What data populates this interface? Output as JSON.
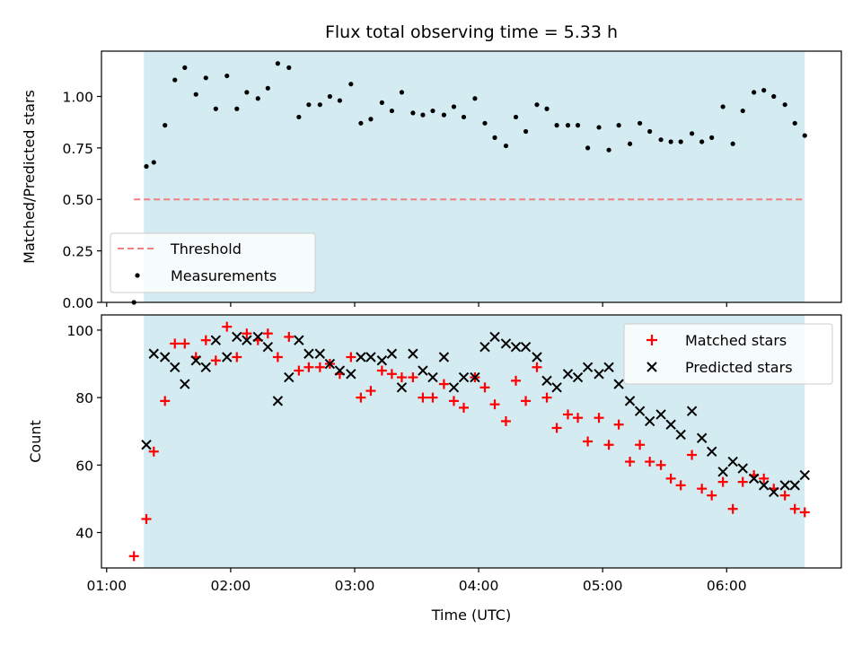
{
  "title": "Flux total observing time = 5.33 h",
  "colors": {
    "shade": "#d3ebf1",
    "threshold": "#f08080",
    "measurements": "#000000",
    "matched": "#ff0000",
    "predicted": "#000000"
  },
  "chart_data": [
    {
      "type": "scatter",
      "ylabel": "Matched/Predicted stars",
      "xlim": [
        0.958,
        6.925
      ],
      "ylim": [
        0.0,
        1.22
      ],
      "yticks": [
        "0.00",
        "0.25",
        "0.50",
        "0.75",
        "1.00"
      ],
      "ytick_values": [
        0.0,
        0.25,
        0.5,
        0.75,
        1.0
      ],
      "shaded_span": [
        1.3,
        6.63
      ],
      "threshold": {
        "name": "Threshold",
        "value": 0.5,
        "x": [
          1.22,
          6.63
        ]
      },
      "legend": {
        "position": "lower-left",
        "entries": [
          "Threshold",
          "Measurements"
        ]
      },
      "series": [
        {
          "name": "Measurements",
          "marker": "dot",
          "x": [
            1.22,
            1.32,
            1.38,
            1.47,
            1.55,
            1.63,
            1.72,
            1.8,
            1.88,
            1.97,
            2.05,
            2.13,
            2.22,
            2.3,
            2.38,
            2.47,
            2.55,
            2.63,
            2.72,
            2.8,
            2.88,
            2.97,
            3.05,
            3.13,
            3.22,
            3.3,
            3.38,
            3.47,
            3.55,
            3.63,
            3.72,
            3.8,
            3.88,
            3.97,
            4.05,
            4.13,
            4.22,
            4.3,
            4.38,
            4.47,
            4.55,
            4.63,
            4.72,
            4.8,
            4.88,
            4.97,
            5.05,
            5.13,
            5.22,
            5.3,
            5.38,
            5.47,
            5.55,
            5.63,
            5.72,
            5.8,
            5.88,
            5.97,
            6.05,
            6.13,
            6.22,
            6.3,
            6.38,
            6.47,
            6.55,
            6.63
          ],
          "y": [
            0.0,
            0.66,
            0.68,
            0.86,
            1.08,
            1.14,
            1.01,
            1.09,
            0.94,
            1.1,
            0.94,
            1.02,
            0.99,
            1.04,
            1.16,
            1.14,
            0.9,
            0.96,
            0.96,
            1.0,
            0.98,
            1.06,
            0.87,
            0.89,
            0.97,
            0.93,
            1.02,
            0.92,
            0.91,
            0.93,
            0.91,
            0.95,
            0.9,
            0.99,
            0.87,
            0.8,
            0.76,
            0.9,
            0.83,
            0.96,
            0.94,
            0.86,
            0.86,
            0.86,
            0.75,
            0.85,
            0.74,
            0.86,
            0.77,
            0.87,
            0.83,
            0.79,
            0.78,
            0.78,
            0.82,
            0.78,
            0.8,
            0.95,
            0.77,
            0.93,
            1.02,
            1.03,
            1.0,
            0.96,
            0.87,
            0.81
          ]
        }
      ]
    },
    {
      "type": "scatter",
      "ylabel": "Count",
      "xlabel": "Time (UTC)",
      "xlim": [
        0.958,
        6.925
      ],
      "ylim": [
        29.5,
        104.5
      ],
      "yticks": [
        "40",
        "60",
        "80",
        "100"
      ],
      "ytick_values": [
        40,
        60,
        80,
        100
      ],
      "xticks": [
        "01:00",
        "02:00",
        "03:00",
        "04:00",
        "05:00",
        "06:00"
      ],
      "xtick_values": [
        1,
        2,
        3,
        4,
        5,
        6
      ],
      "shaded_span": [
        1.3,
        6.63
      ],
      "legend": {
        "position": "upper-right",
        "entries": [
          "Matched stars",
          "Predicted stars"
        ]
      },
      "series": [
        {
          "name": "Matched stars",
          "marker": "plus",
          "x": [
            1.22,
            1.32,
            1.38,
            1.47,
            1.55,
            1.63,
            1.72,
            1.8,
            1.88,
            1.97,
            2.05,
            2.13,
            2.22,
            2.3,
            2.38,
            2.47,
            2.55,
            2.63,
            2.72,
            2.8,
            2.88,
            2.97,
            3.05,
            3.13,
            3.22,
            3.3,
            3.38,
            3.47,
            3.55,
            3.63,
            3.72,
            3.8,
            3.88,
            3.97,
            4.05,
            4.13,
            4.22,
            4.3,
            4.38,
            4.47,
            4.55,
            4.63,
            4.72,
            4.8,
            4.88,
            4.97,
            5.05,
            5.13,
            5.22,
            5.3,
            5.38,
            5.47,
            5.55,
            5.63,
            5.72,
            5.8,
            5.88,
            5.97,
            6.05,
            6.13,
            6.22,
            6.3,
            6.38,
            6.47,
            6.55,
            6.63
          ],
          "y": [
            33,
            44,
            64,
            79,
            96,
            96,
            92,
            97,
            91,
            101,
            92,
            99,
            97,
            99,
            92,
            98,
            88,
            89,
            89,
            90,
            87,
            92,
            80,
            82,
            88,
            87,
            86,
            86,
            80,
            80,
            84,
            79,
            77,
            86,
            83,
            78,
            73,
            85,
            79,
            89,
            80,
            71,
            75,
            74,
            67,
            74,
            66,
            72,
            61,
            66,
            61,
            60,
            56,
            54,
            63,
            53,
            51,
            55,
            47,
            55,
            57,
            56,
            53,
            51,
            47,
            46
          ]
        },
        {
          "name": "Predicted stars",
          "marker": "x",
          "x": [
            1.32,
            1.38,
            1.47,
            1.55,
            1.63,
            1.72,
            1.8,
            1.88,
            1.97,
            2.05,
            2.13,
            2.22,
            2.3,
            2.38,
            2.47,
            2.55,
            2.63,
            2.72,
            2.8,
            2.88,
            2.97,
            3.05,
            3.13,
            3.22,
            3.3,
            3.38,
            3.47,
            3.55,
            3.63,
            3.72,
            3.8,
            3.88,
            3.97,
            4.05,
            4.13,
            4.22,
            4.3,
            4.38,
            4.47,
            4.55,
            4.63,
            4.72,
            4.8,
            4.88,
            4.97,
            5.05,
            5.13,
            5.22,
            5.3,
            5.38,
            5.47,
            5.55,
            5.63,
            5.72,
            5.8,
            5.88,
            5.97,
            6.05,
            6.13,
            6.22,
            6.3,
            6.38,
            6.47,
            6.55,
            6.63
          ],
          "y": [
            66,
            93,
            92,
            89,
            84,
            91,
            89,
            97,
            92,
            98,
            97,
            98,
            95,
            79,
            86,
            97,
            93,
            93,
            90,
            88,
            87,
            92,
            92,
            91,
            93,
            83,
            93,
            88,
            86,
            92,
            83,
            86,
            86,
            95,
            98,
            96,
            95,
            95,
            92,
            85,
            83,
            87,
            86,
            89,
            87,
            89,
            84,
            79,
            76,
            73,
            75,
            72,
            69,
            76,
            68,
            64,
            58,
            61,
            59,
            56,
            54,
            52,
            54,
            54,
            57
          ]
        }
      ]
    }
  ]
}
